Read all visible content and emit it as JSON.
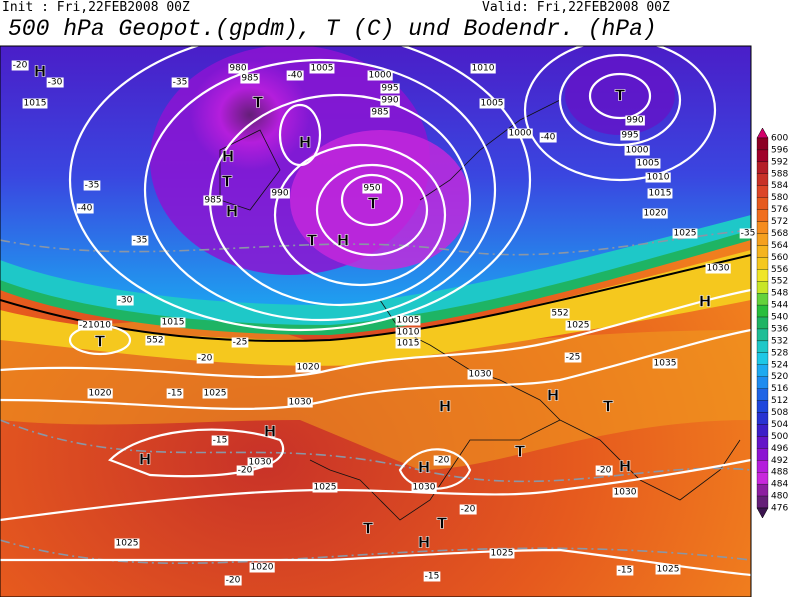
{
  "header": {
    "init": "Init : Fri,22FEB2008 00Z",
    "valid": "Valid: Fri,22FEB2008 00Z",
    "title": "500 hPa Geopot.(gpdm), T (C) und Bodendr. (hPa)"
  },
  "map": {
    "labels": [
      "-20",
      "H",
      "-30",
      "1015",
      "-35",
      "980",
      "985",
      "T",
      "-40",
      "1005",
      "1000",
      "995",
      "990",
      "985",
      "T",
      "990",
      "995",
      "1000",
      "1005",
      "1010",
      "1015",
      "1020",
      "1010",
      "1005",
      "1000",
      "-40",
      "H",
      "T",
      "H",
      "985",
      "990",
      "H",
      "950",
      "T",
      "T",
      "H",
      "-35",
      "-40",
      "-35",
      "-30",
      "1025",
      "-35",
      "1030",
      "H",
      "1025",
      "552",
      "-25",
      "1035",
      "-21010",
      "T",
      "1015",
      "552",
      "-25",
      "-20",
      "1020",
      "1005",
      "1010",
      "1015",
      "1030",
      "1020",
      "-15",
      "1025",
      "1030",
      "H",
      "H",
      "T",
      "-15",
      "H",
      "H",
      "1030",
      "-20",
      "T",
      "H",
      "-20",
      "1030",
      "-20",
      "H",
      "1030",
      "1025",
      "-20",
      "T",
      "T",
      "H",
      "1025",
      "1025",
      "1020",
      "-20",
      "-15",
      "-15",
      "1025"
    ]
  },
  "colorbar": {
    "ticks": [
      600,
      596,
      592,
      588,
      584,
      580,
      576,
      572,
      568,
      564,
      560,
      556,
      552,
      548,
      544,
      540,
      536,
      532,
      528,
      524,
      520,
      516,
      512,
      508,
      504,
      500,
      496,
      492,
      488,
      484,
      480,
      476
    ],
    "colors": [
      "#d4006a",
      "#8c0023",
      "#a0002a",
      "#b41e28",
      "#c83228",
      "#dc4628",
      "#e65a1e",
      "#f06e1e",
      "#f58c1e",
      "#f5a01e",
      "#f5b41e",
      "#f5c81e",
      "#f0e628",
      "#c8e628",
      "#64d23c",
      "#28be3c",
      "#1eb464",
      "#1ebe96",
      "#1ec8c8",
      "#1ec8e6",
      "#1eaaf0",
      "#1e8cf0",
      "#1e64e6",
      "#1e46dc",
      "#2832d2",
      "#3c1ec8",
      "#6414c8",
      "#8c14d2",
      "#b41edc",
      "#c828dc",
      "#8c1ea0",
      "#641e78",
      "#3c1450"
    ]
  }
}
